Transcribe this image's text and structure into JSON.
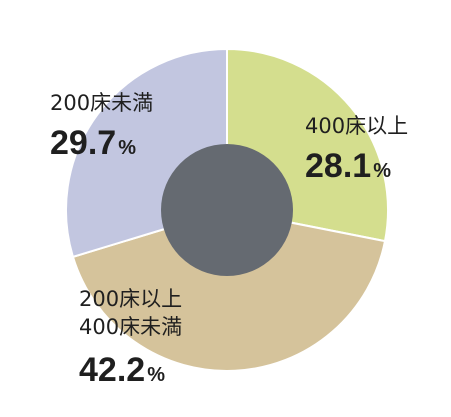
{
  "chart_data": {
    "type": "pie",
    "donut": true,
    "unit": "%",
    "slices": [
      {
        "label_lines": [
          "400床以上"
        ],
        "value": 28.1,
        "value_text": "28.1",
        "color": "#d4de8e"
      },
      {
        "label_lines": [
          "200床以上",
          "400床未満"
        ],
        "value": 42.2,
        "value_text": "42.2",
        "color": "#d5c39b"
      },
      {
        "label_lines": [
          "200床未満"
        ],
        "value": 29.7,
        "value_text": "29.7",
        "color": "#c2c6e0"
      }
    ],
    "hole_color": "#656a71",
    "separator_color": "#ffffff",
    "start_angle_deg": 0,
    "direction": "clockwise"
  }
}
